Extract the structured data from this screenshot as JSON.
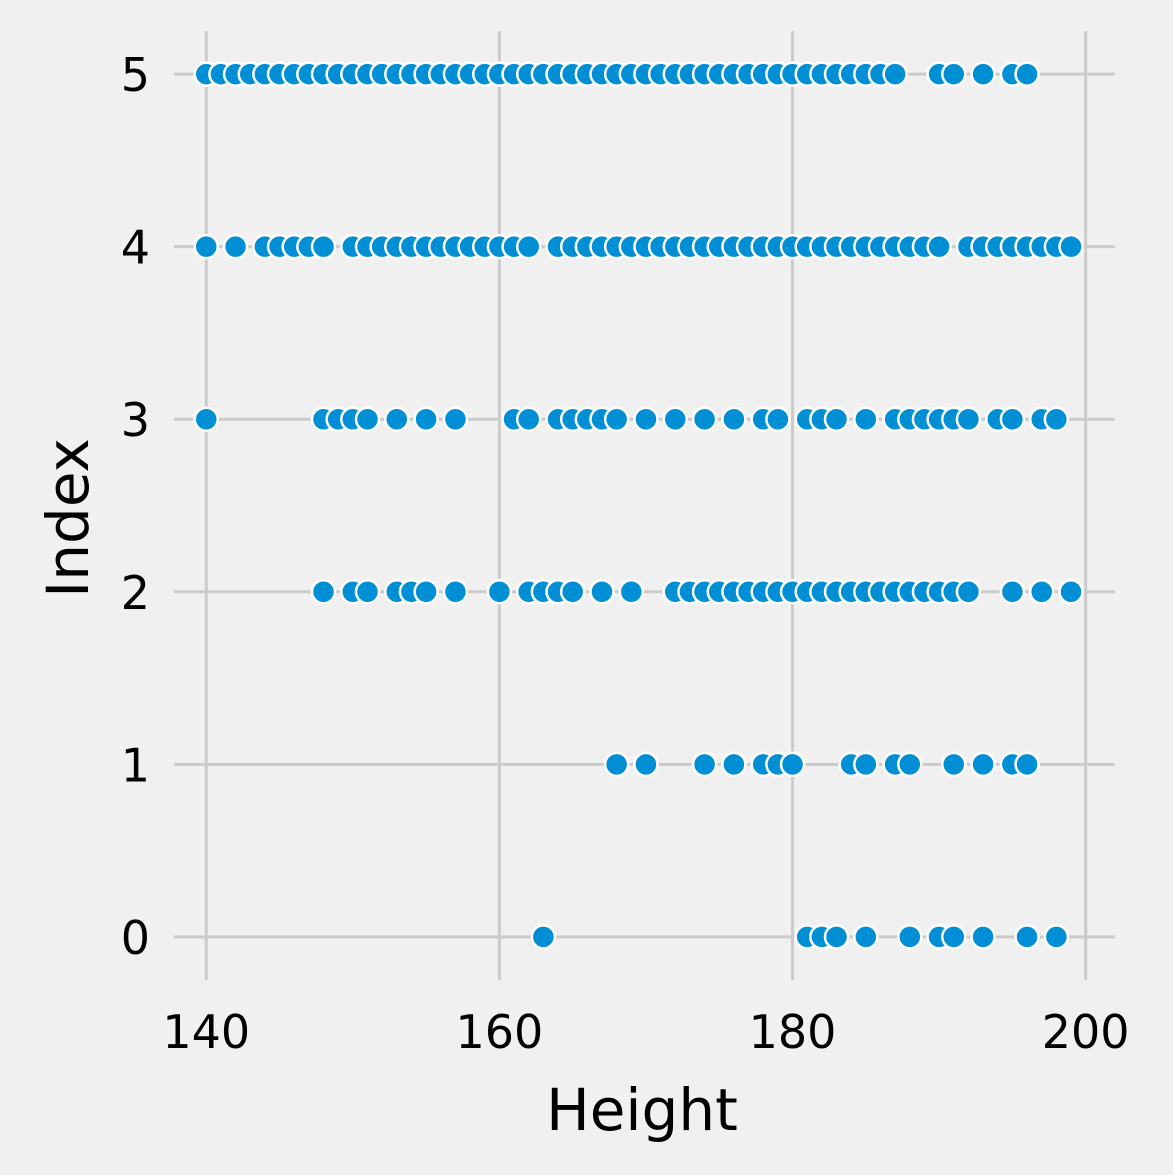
{
  "chart_data": {
    "type": "scatter",
    "xlabel": "Height",
    "ylabel": "Index",
    "xlim": [
      137.8,
      202
    ],
    "ylim": [
      -0.25,
      5.25
    ],
    "xticks": [
      140,
      160,
      180,
      200
    ],
    "yticks": [
      0,
      1,
      2,
      3,
      4,
      5
    ],
    "grid": true,
    "background_color": "#f0f0f0",
    "grid_color": "#cbcbcb",
    "point_color": "#008fd5",
    "point_edge_color": "#ffffff",
    "series": [
      {
        "points": [
          [
            140,
            5
          ],
          [
            141,
            5
          ],
          [
            142,
            5
          ],
          [
            143,
            5
          ],
          [
            144,
            5
          ],
          [
            145,
            5
          ],
          [
            146,
            5
          ],
          [
            147,
            5
          ],
          [
            148,
            5
          ],
          [
            149,
            5
          ],
          [
            150,
            5
          ],
          [
            151,
            5
          ],
          [
            152,
            5
          ],
          [
            153,
            5
          ],
          [
            154,
            5
          ],
          [
            155,
            5
          ],
          [
            156,
            5
          ],
          [
            157,
            5
          ],
          [
            158,
            5
          ],
          [
            159,
            5
          ],
          [
            160,
            5
          ],
          [
            161,
            5
          ],
          [
            162,
            5
          ],
          [
            163,
            5
          ],
          [
            164,
            5
          ],
          [
            165,
            5
          ],
          [
            166,
            5
          ],
          [
            167,
            5
          ],
          [
            168,
            5
          ],
          [
            169,
            5
          ],
          [
            170,
            5
          ],
          [
            171,
            5
          ],
          [
            172,
            5
          ],
          [
            173,
            5
          ],
          [
            174,
            5
          ],
          [
            175,
            5
          ],
          [
            176,
            5
          ],
          [
            177,
            5
          ],
          [
            178,
            5
          ],
          [
            179,
            5
          ],
          [
            180,
            5
          ],
          [
            181,
            5
          ],
          [
            182,
            5
          ],
          [
            183,
            5
          ],
          [
            184,
            5
          ],
          [
            185,
            5
          ],
          [
            186,
            5
          ],
          [
            187,
            5
          ],
          [
            190,
            5
          ],
          [
            191,
            5
          ],
          [
            193,
            5
          ],
          [
            195,
            5
          ],
          [
            196,
            5
          ],
          [
            140,
            4
          ],
          [
            142,
            4
          ],
          [
            144,
            4
          ],
          [
            145,
            4
          ],
          [
            146,
            4
          ],
          [
            147,
            4
          ],
          [
            148,
            4
          ],
          [
            150,
            4
          ],
          [
            151,
            4
          ],
          [
            152,
            4
          ],
          [
            153,
            4
          ],
          [
            154,
            4
          ],
          [
            155,
            4
          ],
          [
            156,
            4
          ],
          [
            157,
            4
          ],
          [
            158,
            4
          ],
          [
            159,
            4
          ],
          [
            160,
            4
          ],
          [
            161,
            4
          ],
          [
            162,
            4
          ],
          [
            164,
            4
          ],
          [
            165,
            4
          ],
          [
            166,
            4
          ],
          [
            167,
            4
          ],
          [
            168,
            4
          ],
          [
            169,
            4
          ],
          [
            170,
            4
          ],
          [
            171,
            4
          ],
          [
            172,
            4
          ],
          [
            173,
            4
          ],
          [
            174,
            4
          ],
          [
            175,
            4
          ],
          [
            176,
            4
          ],
          [
            177,
            4
          ],
          [
            178,
            4
          ],
          [
            179,
            4
          ],
          [
            180,
            4
          ],
          [
            181,
            4
          ],
          [
            182,
            4
          ],
          [
            183,
            4
          ],
          [
            184,
            4
          ],
          [
            185,
            4
          ],
          [
            186,
            4
          ],
          [
            187,
            4
          ],
          [
            188,
            4
          ],
          [
            189,
            4
          ],
          [
            190,
            4
          ],
          [
            192,
            4
          ],
          [
            193,
            4
          ],
          [
            194,
            4
          ],
          [
            195,
            4
          ],
          [
            196,
            4
          ],
          [
            197,
            4
          ],
          [
            198,
            4
          ],
          [
            199,
            4
          ],
          [
            140,
            3
          ],
          [
            148,
            3
          ],
          [
            149,
            3
          ],
          [
            150,
            3
          ],
          [
            151,
            3
          ],
          [
            153,
            3
          ],
          [
            155,
            3
          ],
          [
            157,
            3
          ],
          [
            161,
            3
          ],
          [
            162,
            3
          ],
          [
            164,
            3
          ],
          [
            165,
            3
          ],
          [
            166,
            3
          ],
          [
            167,
            3
          ],
          [
            168,
            3
          ],
          [
            170,
            3
          ],
          [
            172,
            3
          ],
          [
            174,
            3
          ],
          [
            176,
            3
          ],
          [
            178,
            3
          ],
          [
            179,
            3
          ],
          [
            181,
            3
          ],
          [
            182,
            3
          ],
          [
            183,
            3
          ],
          [
            185,
            3
          ],
          [
            187,
            3
          ],
          [
            188,
            3
          ],
          [
            189,
            3
          ],
          [
            190,
            3
          ],
          [
            191,
            3
          ],
          [
            192,
            3
          ],
          [
            194,
            3
          ],
          [
            195,
            3
          ],
          [
            197,
            3
          ],
          [
            198,
            3
          ],
          [
            148,
            2
          ],
          [
            150,
            2
          ],
          [
            151,
            2
          ],
          [
            153,
            2
          ],
          [
            154,
            2
          ],
          [
            155,
            2
          ],
          [
            157,
            2
          ],
          [
            160,
            2
          ],
          [
            162,
            2
          ],
          [
            163,
            2
          ],
          [
            164,
            2
          ],
          [
            165,
            2
          ],
          [
            167,
            2
          ],
          [
            169,
            2
          ],
          [
            172,
            2
          ],
          [
            173,
            2
          ],
          [
            174,
            2
          ],
          [
            175,
            2
          ],
          [
            176,
            2
          ],
          [
            177,
            2
          ],
          [
            178,
            2
          ],
          [
            179,
            2
          ],
          [
            180,
            2
          ],
          [
            181,
            2
          ],
          [
            182,
            2
          ],
          [
            183,
            2
          ],
          [
            184,
            2
          ],
          [
            185,
            2
          ],
          [
            186,
            2
          ],
          [
            187,
            2
          ],
          [
            188,
            2
          ],
          [
            189,
            2
          ],
          [
            190,
            2
          ],
          [
            191,
            2
          ],
          [
            192,
            2
          ],
          [
            195,
            2
          ],
          [
            197,
            2
          ],
          [
            199,
            2
          ],
          [
            168,
            1
          ],
          [
            170,
            1
          ],
          [
            174,
            1
          ],
          [
            176,
            1
          ],
          [
            178,
            1
          ],
          [
            179,
            1
          ],
          [
            180,
            1
          ],
          [
            184,
            1
          ],
          [
            185,
            1
          ],
          [
            187,
            1
          ],
          [
            188,
            1
          ],
          [
            191,
            1
          ],
          [
            193,
            1
          ],
          [
            195,
            1
          ],
          [
            196,
            1
          ],
          [
            163,
            0
          ],
          [
            181,
            0
          ],
          [
            182,
            0
          ],
          [
            183,
            0
          ],
          [
            185,
            0
          ],
          [
            188,
            0
          ],
          [
            190,
            0
          ],
          [
            191,
            0
          ],
          [
            193,
            0
          ],
          [
            196,
            0
          ],
          [
            198,
            0
          ]
        ]
      }
    ]
  }
}
